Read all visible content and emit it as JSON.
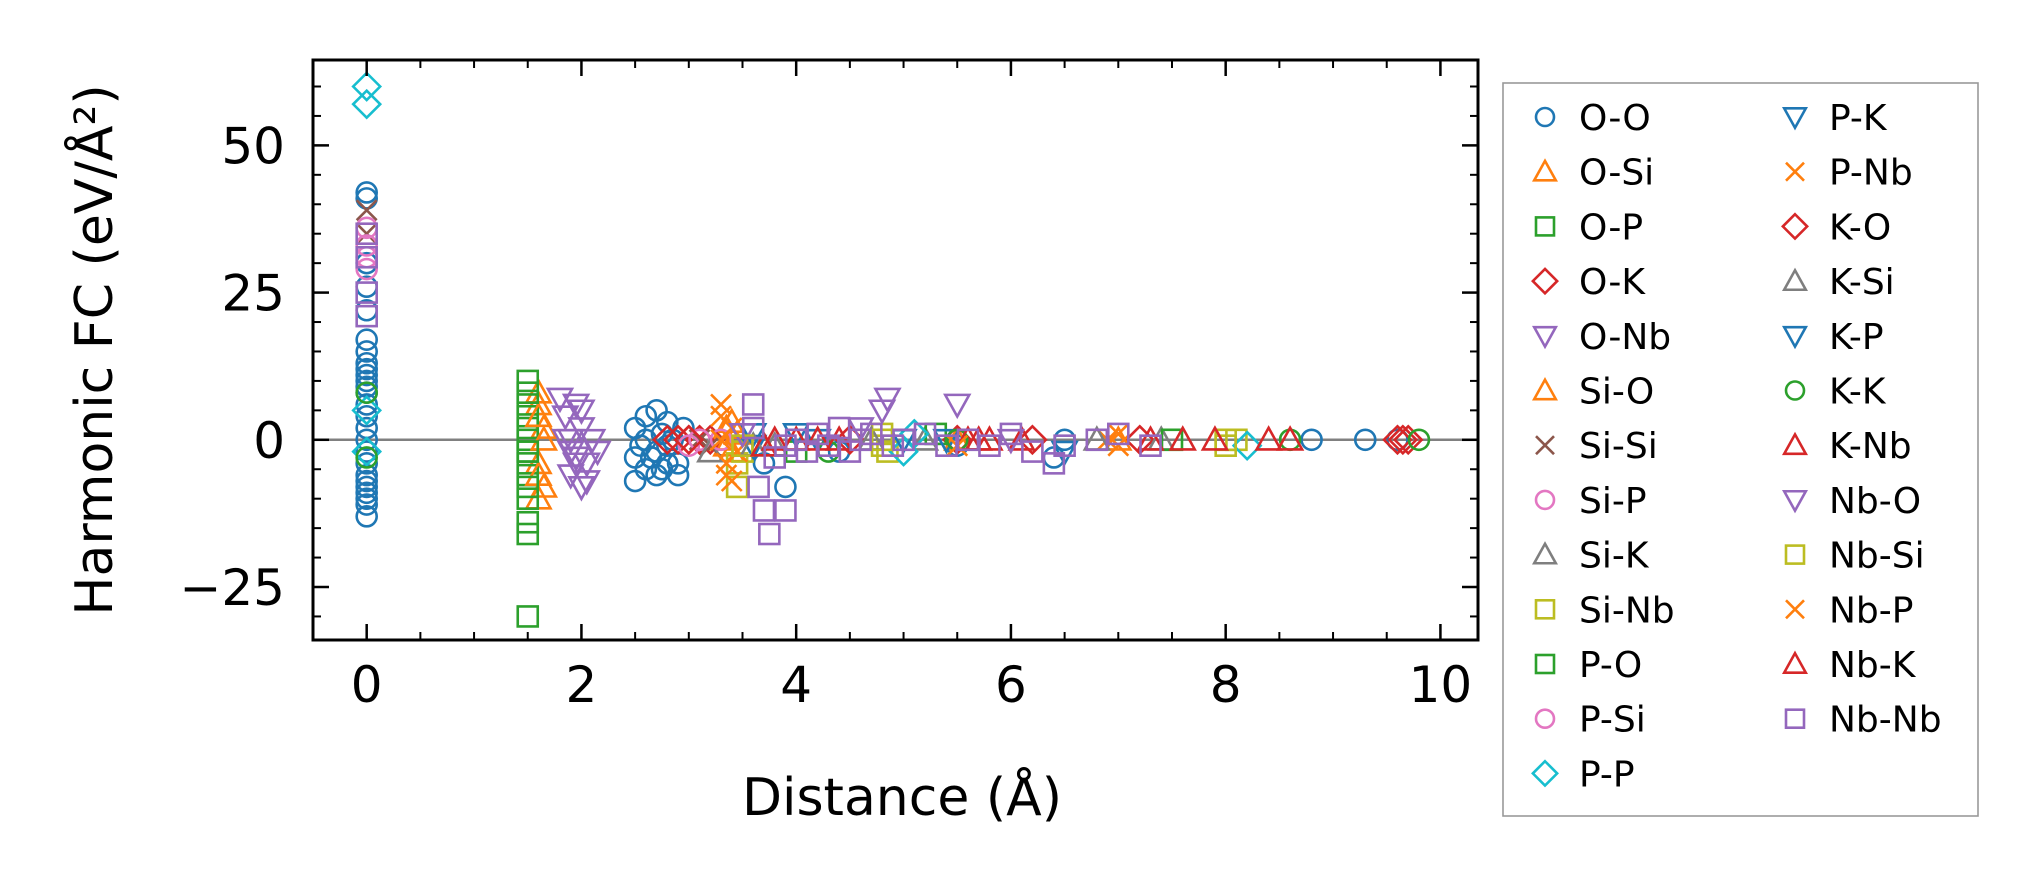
{
  "chart_data": {
    "type": "scatter",
    "title": "",
    "xlabel": "Distance (Å)",
    "ylabel": "Harmonic FC (eV/Å²)",
    "xlim": [
      -0.5,
      10.35
    ],
    "ylim": [
      -34,
      64.5
    ],
    "xticks": [
      0,
      2,
      4,
      6,
      8,
      10
    ],
    "yticks": [
      -25,
      0,
      25,
      50
    ],
    "xtick_labels": [
      "0",
      "2",
      "4",
      "6",
      "8",
      "10"
    ],
    "ytick_labels": [
      "−25",
      "0",
      "25",
      "50"
    ],
    "zero_line": true,
    "grid": false,
    "legend_position": "right-outside",
    "legend_columns": 2,
    "colors": {
      "blue": "#1f77b4",
      "orange": "#ff7f0e",
      "green": "#2ca02c",
      "red": "#d62728",
      "purple": "#9467bd",
      "brown": "#8c564b",
      "pink": "#e377c2",
      "gray": "#7f7f7f",
      "olive": "#bcbd22",
      "cyan": "#17becf"
    },
    "series": [
      {
        "name": "O-O",
        "marker": "circle",
        "color": "#1f77b4",
        "points": [
          [
            0,
            42
          ],
          [
            0,
            41
          ],
          [
            0,
            30
          ],
          [
            0,
            26
          ],
          [
            0,
            22
          ],
          [
            0,
            17
          ],
          [
            0,
            15
          ],
          [
            0,
            13
          ],
          [
            0,
            12
          ],
          [
            0,
            11
          ],
          [
            0,
            10
          ],
          [
            0,
            9
          ],
          [
            0,
            8
          ],
          [
            0,
            6
          ],
          [
            0,
            4
          ],
          [
            0,
            2
          ],
          [
            0,
            0
          ],
          [
            0,
            -2
          ],
          [
            0,
            -4
          ],
          [
            0,
            -6
          ],
          [
            0,
            -7
          ],
          [
            0,
            -8
          ],
          [
            0,
            -9
          ],
          [
            0,
            -10
          ],
          [
            0,
            -11
          ],
          [
            0,
            -13
          ],
          [
            2.5,
            -7
          ],
          [
            2.5,
            2
          ],
          [
            2.55,
            -1
          ],
          [
            2.6,
            4
          ],
          [
            2.6,
            0
          ],
          [
            2.65,
            -3
          ],
          [
            2.7,
            5
          ],
          [
            2.7,
            -2
          ],
          [
            2.75,
            1
          ],
          [
            2.75,
            -5
          ],
          [
            2.8,
            3
          ],
          [
            2.8,
            -1
          ],
          [
            2.85,
            0
          ],
          [
            2.9,
            -4
          ],
          [
            2.95,
            2
          ],
          [
            2.5,
            -3
          ],
          [
            2.7,
            -6
          ],
          [
            2.9,
            -6
          ],
          [
            2.6,
            -5
          ],
          [
            2.8,
            -4
          ],
          [
            3.9,
            -8
          ],
          [
            3.7,
            -4
          ],
          [
            4.4,
            -2
          ],
          [
            5.5,
            -1
          ],
          [
            6.4,
            -3
          ],
          [
            6.5,
            0
          ],
          [
            8.8,
            0
          ],
          [
            9.3,
            0
          ],
          [
            9.6,
            0
          ]
        ]
      },
      {
        "name": "O-Si",
        "marker": "triangle-up",
        "color": "#ff7f0e",
        "points": [
          [
            1.6,
            8
          ],
          [
            1.6,
            6
          ],
          [
            1.6,
            -4
          ],
          [
            1.6,
            -10
          ],
          [
            1.65,
            2
          ],
          [
            3.3,
            0
          ],
          [
            3.35,
            2
          ],
          [
            3.4,
            -2
          ],
          [
            3.45,
            1
          ],
          [
            5.5,
            0
          ],
          [
            7.0,
            0
          ]
        ]
      },
      {
        "name": "O-P",
        "marker": "square",
        "color": "#2ca02c",
        "points": [
          [
            1.5,
            6
          ],
          [
            1.5,
            4
          ],
          [
            1.5,
            2
          ],
          [
            1.5,
            0
          ],
          [
            1.5,
            -2
          ],
          [
            1.5,
            -4
          ],
          [
            1.5,
            -6
          ]
        ]
      },
      {
        "name": "O-K",
        "marker": "diamond",
        "color": "#d62728",
        "points": [
          [
            2.8,
            0
          ],
          [
            2.9,
            0
          ],
          [
            3.0,
            0
          ],
          [
            3.1,
            0
          ],
          [
            3.2,
            0
          ],
          [
            5.5,
            0
          ],
          [
            7.2,
            0
          ],
          [
            9.6,
            0
          ],
          [
            9.7,
            0
          ]
        ]
      },
      {
        "name": "O-Nb",
        "marker": "triangle-down",
        "color": "#9467bd",
        "points": [
          [
            1.8,
            7
          ],
          [
            1.85,
            4
          ],
          [
            1.85,
            0
          ],
          [
            1.9,
            -2
          ],
          [
            1.9,
            -6
          ],
          [
            1.95,
            6
          ],
          [
            1.95,
            -3
          ],
          [
            2.0,
            -8
          ],
          [
            2.0,
            2
          ],
          [
            2.05,
            -4
          ],
          [
            2.1,
            0
          ],
          [
            2.15,
            -2
          ]
        ]
      },
      {
        "name": "Si-O",
        "marker": "triangle-up",
        "color": "#ff7f0e",
        "points": [
          [
            1.6,
            -6
          ],
          [
            1.6,
            4
          ],
          [
            1.65,
            -8
          ],
          [
            1.65,
            0
          ],
          [
            3.35,
            -1
          ],
          [
            3.4,
            3
          ]
        ]
      },
      {
        "name": "Si-Si",
        "marker": "x",
        "color": "#8c564b",
        "points": [
          [
            0,
            39
          ],
          [
            0,
            35
          ],
          [
            3.1,
            0
          ],
          [
            3.2,
            -1
          ]
        ]
      },
      {
        "name": "Si-P",
        "marker": "circle",
        "color": "#e377c2",
        "points": [
          [
            0,
            36
          ],
          [
            0,
            33
          ],
          [
            3.0,
            -1
          ],
          [
            3.1,
            0
          ]
        ]
      },
      {
        "name": "Si-K",
        "marker": "triangle-up",
        "color": "#7f7f7f",
        "points": [
          [
            3.2,
            -2
          ],
          [
            3.8,
            -1
          ],
          [
            5.2,
            0
          ],
          [
            7.4,
            0
          ]
        ]
      },
      {
        "name": "Si-Nb",
        "marker": "square",
        "color": "#bcbd22",
        "points": [
          [
            3.45,
            -4
          ],
          [
            3.45,
            -8
          ],
          [
            3.5,
            -2
          ],
          [
            4.8,
            -1
          ],
          [
            4.85,
            -2
          ],
          [
            4.8,
            1
          ],
          [
            8.0,
            0
          ],
          [
            8.1,
            0
          ]
        ]
      },
      {
        "name": "P-O",
        "marker": "square",
        "color": "#2ca02c",
        "points": [
          [
            1.5,
            -30
          ],
          [
            1.5,
            -16
          ],
          [
            1.5,
            -14
          ],
          [
            1.5,
            -10
          ],
          [
            1.5,
            -8
          ],
          [
            1.5,
            10
          ],
          [
            1.5,
            8
          ],
          [
            1.5,
            -2
          ],
          [
            4.0,
            -2
          ],
          [
            5.3,
            1
          ],
          [
            7.5,
            0
          ]
        ]
      },
      {
        "name": "P-Si",
        "marker": "circle",
        "color": "#e377c2",
        "points": [
          [
            0,
            31
          ],
          [
            0,
            29
          ],
          [
            3.3,
            0
          ]
        ]
      },
      {
        "name": "P-P",
        "marker": "diamond",
        "color": "#17becf",
        "points": [
          [
            0,
            60
          ],
          [
            0,
            57
          ],
          [
            0,
            5
          ],
          [
            0,
            -2
          ],
          [
            5.0,
            -2
          ],
          [
            5.1,
            1
          ],
          [
            8.2,
            -1
          ]
        ]
      },
      {
        "name": "P-K",
        "marker": "triangle-down",
        "color": "#1f77b4",
        "points": [
          [
            3.6,
            -1
          ],
          [
            4.0,
            1
          ],
          [
            5.0,
            0
          ],
          [
            6.5,
            -2
          ]
        ]
      },
      {
        "name": "P-Nb",
        "marker": "x",
        "color": "#ff7f0e",
        "points": [
          [
            3.3,
            6
          ],
          [
            3.3,
            4
          ],
          [
            3.35,
            -4
          ],
          [
            3.35,
            -6
          ],
          [
            3.4,
            -7
          ],
          [
            3.4,
            2
          ],
          [
            3.45,
            -2
          ],
          [
            6.9,
            0
          ],
          [
            7.0,
            -1
          ]
        ]
      },
      {
        "name": "K-O",
        "marker": "diamond",
        "color": "#d62728",
        "points": [
          [
            3.0,
            0
          ],
          [
            4.5,
            0
          ],
          [
            6.2,
            0
          ],
          [
            9.65,
            0
          ]
        ]
      },
      {
        "name": "K-Si",
        "marker": "triangle-up",
        "color": "#7f7f7f",
        "points": [
          [
            3.6,
            -1
          ],
          [
            4.7,
            0
          ],
          [
            6.8,
            0
          ]
        ]
      },
      {
        "name": "K-P",
        "marker": "triangle-down",
        "color": "#1f77b4",
        "points": [
          [
            3.6,
            1
          ],
          [
            4.2,
            0
          ],
          [
            5.4,
            0
          ]
        ]
      },
      {
        "name": "K-K",
        "marker": "circle",
        "color": "#2ca02c",
        "points": [
          [
            0,
            8
          ],
          [
            0,
            -3
          ],
          [
            4.3,
            -2
          ],
          [
            5.5,
            0
          ],
          [
            8.6,
            0
          ],
          [
            9.8,
            0
          ]
        ]
      },
      {
        "name": "K-Nb",
        "marker": "triangle-up",
        "color": "#d62728",
        "points": [
          [
            3.8,
            0
          ],
          [
            4.0,
            0
          ],
          [
            4.2,
            0
          ],
          [
            4.4,
            0
          ],
          [
            5.6,
            0
          ],
          [
            5.8,
            0
          ],
          [
            6.1,
            0
          ],
          [
            7.3,
            0
          ],
          [
            7.6,
            0
          ],
          [
            8.4,
            0
          ],
          [
            8.6,
            0
          ]
        ]
      },
      {
        "name": "Nb-O",
        "marker": "triangle-down",
        "color": "#9467bd",
        "points": [
          [
            1.9,
            0
          ],
          [
            1.95,
            -4
          ],
          [
            2.0,
            5
          ],
          [
            2.05,
            -7
          ],
          [
            3.5,
            1
          ],
          [
            4.6,
            2
          ],
          [
            4.8,
            5
          ],
          [
            4.85,
            7
          ],
          [
            5.5,
            6
          ],
          [
            6.0,
            0
          ]
        ]
      },
      {
        "name": "Nb-Si",
        "marker": "square",
        "color": "#bcbd22",
        "points": [
          [
            3.5,
            -1
          ],
          [
            4.8,
            0
          ],
          [
            8.0,
            -1
          ]
        ]
      },
      {
        "name": "Nb-P",
        "marker": "x",
        "color": "#ff7f0e",
        "points": [
          [
            3.3,
            0
          ],
          [
            5.5,
            -1
          ],
          [
            7.0,
            1
          ]
        ]
      },
      {
        "name": "Nb-K",
        "marker": "triangle-up",
        "color": "#d62728",
        "points": [
          [
            3.7,
            -1
          ],
          [
            5.7,
            0
          ],
          [
            7.9,
            0
          ]
        ]
      },
      {
        "name": "Nb-Nb",
        "marker": "square",
        "color": "#9467bd",
        "points": [
          [
            0,
            35
          ],
          [
            0,
            31
          ],
          [
            0,
            25
          ],
          [
            0,
            21
          ],
          [
            3.6,
            6
          ],
          [
            3.6,
            2
          ],
          [
            3.65,
            -8
          ],
          [
            3.7,
            -12
          ],
          [
            3.75,
            -16
          ],
          [
            3.9,
            -12
          ],
          [
            3.8,
            -3
          ],
          [
            3.9,
            -1
          ],
          [
            4.0,
            0
          ],
          [
            4.1,
            -2
          ],
          [
            4.2,
            1
          ],
          [
            4.3,
            -1
          ],
          [
            4.4,
            2
          ],
          [
            4.5,
            -2
          ],
          [
            4.6,
            0
          ],
          [
            4.7,
            1
          ],
          [
            4.9,
            -1
          ],
          [
            5.0,
            0
          ],
          [
            5.2,
            1
          ],
          [
            5.4,
            -1
          ],
          [
            5.6,
            0
          ],
          [
            5.8,
            -1
          ],
          [
            6.0,
            1
          ],
          [
            6.2,
            -2
          ],
          [
            6.4,
            -4
          ],
          [
            6.5,
            -1
          ],
          [
            6.8,
            0
          ],
          [
            7.0,
            1
          ],
          [
            7.3,
            -1
          ]
        ]
      }
    ]
  }
}
